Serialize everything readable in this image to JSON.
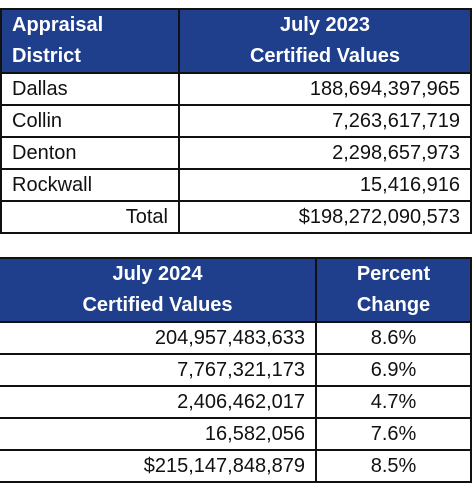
{
  "top_table": {
    "header": [
      "Appraisal\nDistrict",
      "July 2023\nCertified Values"
    ],
    "rows": [
      [
        "Dallas",
        "188,694,397,965"
      ],
      [
        "Collin",
        "7,263,617,719"
      ],
      [
        "Denton",
        "2,298,657,973"
      ],
      [
        "Rockwall",
        "15,416,916"
      ],
      [
        "Total",
        "$198,272,090,573"
      ]
    ]
  },
  "bottom_table": {
    "header": [
      "July 2024\nCertified Values",
      "Percent\nChange"
    ],
    "rows": [
      [
        "204,957,483,633",
        "8.6%"
      ],
      [
        "7,767,321,173",
        "6.9%"
      ],
      [
        "2,406,462,017",
        "4.7%"
      ],
      [
        "16,582,056",
        "7.6%"
      ],
      [
        "$215,147,848,879",
        "8.5%"
      ]
    ]
  }
}
